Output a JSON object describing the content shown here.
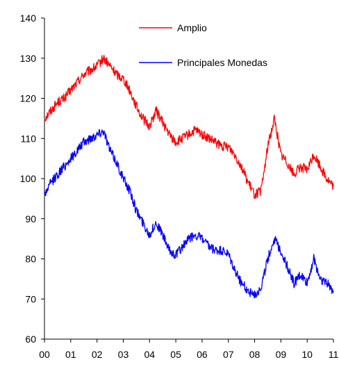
{
  "chart_data": {
    "type": "line",
    "title": "",
    "xlabel": "",
    "ylabel": "",
    "x_tick_labels": [
      "00",
      "01",
      "02",
      "03",
      "04",
      "05",
      "06",
      "07",
      "08",
      "09",
      "10",
      "11"
    ],
    "ylim": [
      60,
      140
    ],
    "y_ticks": [
      60,
      70,
      80,
      90,
      100,
      110,
      120,
      130,
      140
    ],
    "y_tick_labels": [
      "60",
      "70",
      "80",
      "90",
      "100",
      "110",
      "120",
      "130",
      "140"
    ],
    "grid": false,
    "legend_position": "top-center",
    "x": [
      0.0,
      0.25,
      0.5,
      0.75,
      1.0,
      1.25,
      1.5,
      1.75,
      2.0,
      2.25,
      2.5,
      2.75,
      3.0,
      3.25,
      3.5,
      3.75,
      4.0,
      4.25,
      4.5,
      4.75,
      5.0,
      5.25,
      5.5,
      5.75,
      6.0,
      6.25,
      6.5,
      6.75,
      7.0,
      7.25,
      7.5,
      7.75,
      8.0,
      8.25,
      8.5,
      8.75,
      9.0,
      9.25,
      9.5,
      9.75,
      10.0,
      10.25,
      10.5,
      10.75,
      11.0
    ],
    "series": [
      {
        "name": "Amplio",
        "color": "#ff0000",
        "values": [
          115,
          117,
          119,
          120,
          122,
          124,
          126,
          127,
          128,
          130,
          128,
          126,
          125,
          122,
          118,
          115,
          113,
          117,
          114,
          111,
          109,
          110,
          111,
          112,
          111,
          110,
          109,
          108,
          108,
          106,
          103,
          99,
          96,
          97,
          108,
          115,
          106,
          104,
          101,
          103,
          102,
          106,
          103,
          100,
          98
        ]
      },
      {
        "name": "Principales Monedas",
        "color": "#0000ff",
        "values": [
          96,
          99,
          101,
          103,
          105,
          107,
          109,
          110,
          111,
          112,
          107,
          104,
          100,
          97,
          92,
          89,
          86,
          89,
          86,
          82,
          81,
          83,
          85,
          86,
          85,
          83,
          82,
          82,
          81,
          77,
          74,
          72,
          71,
          73,
          80,
          85,
          82,
          78,
          74,
          76,
          74,
          80,
          75,
          74,
          72
        ]
      }
    ]
  }
}
